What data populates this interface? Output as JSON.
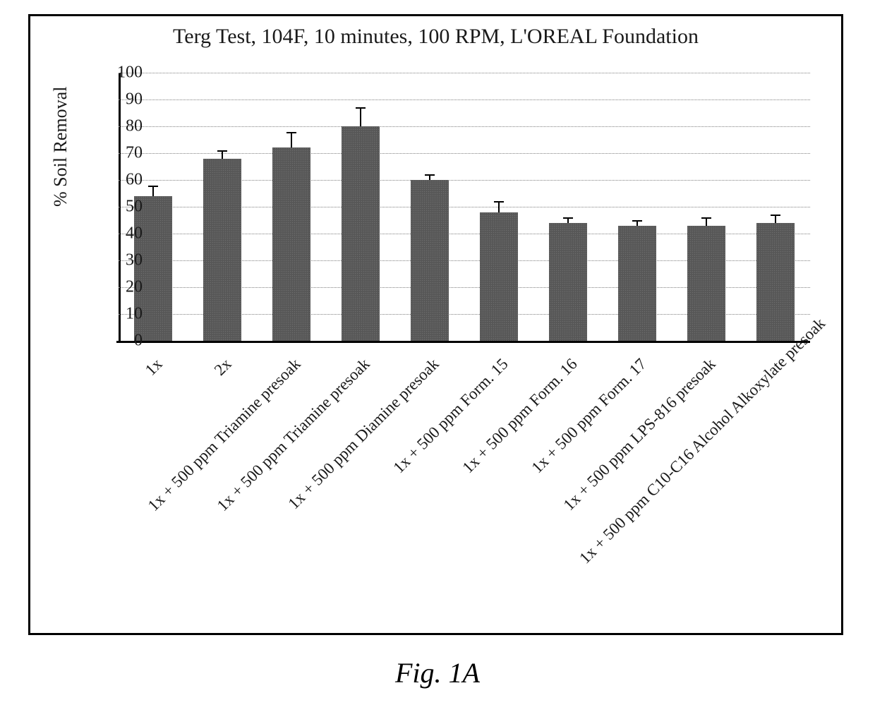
{
  "figure_caption": "Fig. 1A",
  "chart": {
    "type": "bar",
    "title": "Terg Test, 104F, 10 minutes, 100 RPM, L'OREAL Foundation",
    "title_fontsize": 30,
    "ylabel": "% Soil Removal",
    "label_fontsize": 26,
    "categories": [
      "1x",
      "2x",
      "1x + 500 ppm Triamine presoak",
      "1x + 500 ppm Triamine presoak",
      "1x + 500 ppm Diamine presoak",
      "1x + 500 ppm Form. 15",
      "1x + 500 ppm Form. 16",
      "1x + 500 ppm Form. 17",
      "1x + 500 ppm LPS-816 presoak",
      "1x + 500 ppm C10-C16 Alcohol Alkoxylate presoak"
    ],
    "values": [
      54,
      68,
      72,
      80,
      60,
      48,
      44,
      43,
      43,
      44
    ],
    "errors": [
      4,
      3,
      6,
      7,
      2,
      4,
      2,
      2,
      3,
      3
    ],
    "bar_color": "#5a5a5a",
    "error_color": "#000000",
    "ylim": [
      0,
      100
    ],
    "ytick_step": 10,
    "bar_width": 0.55,
    "background_color": "#ffffff",
    "grid_color": "#808080",
    "axis_color": "#000000",
    "tick_fontsize": 24,
    "xtick_fontsize": 23,
    "xtick_rotation_deg": 45
  }
}
